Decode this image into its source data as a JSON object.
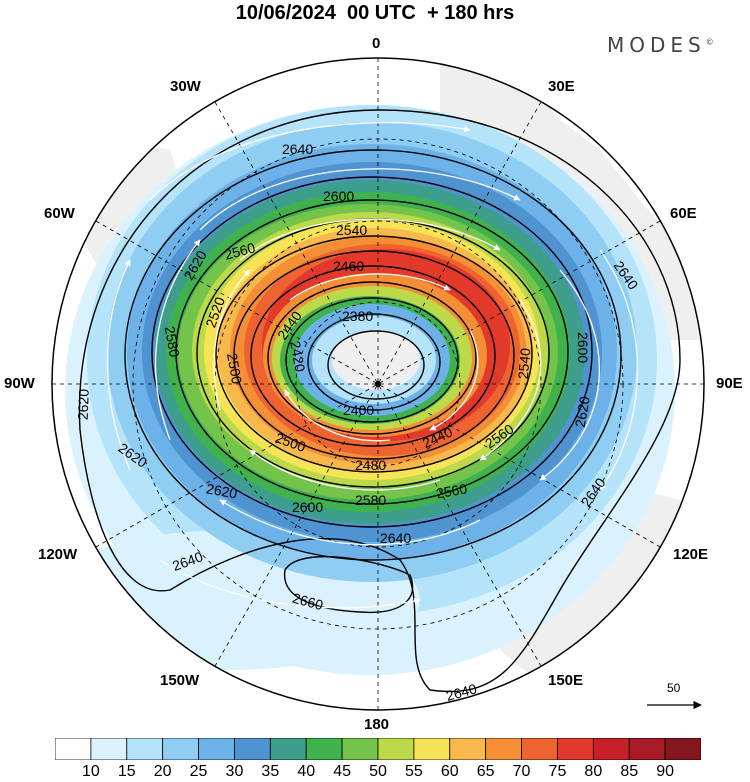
{
  "title": "10/06/2024  00 UTC  + 180 hrs",
  "logo": "MODES",
  "logo_mark": "©",
  "longitude_labels": {
    "lon0": "0",
    "lon30e": "30E",
    "lon60e": "60E",
    "lon90e": "90E",
    "lon120e": "120E",
    "lon150e": "150E",
    "lon180": "180",
    "lon150w": "150W",
    "lon120w": "120W",
    "lon90w": "90W",
    "lon60w": "60W",
    "lon30w": "30W"
  },
  "reference_vector": {
    "label": "50"
  },
  "contour_labels": [
    "2640",
    "2600",
    "2620",
    "2560",
    "2540",
    "2460",
    "2520",
    "2440",
    "2380",
    "2580",
    "2420",
    "2500",
    "2400",
    "2600",
    "2540",
    "2620",
    "2640",
    "2620",
    "2500",
    "2480",
    "2440",
    "2560",
    "2580",
    "2600",
    "2560",
    "2620",
    "2640",
    "2640",
    "2660",
    "2640"
  ],
  "colorbar": {
    "labels": [
      "10",
      "15",
      "20",
      "25",
      "30",
      "35",
      "40",
      "45",
      "50",
      "55",
      "60",
      "65",
      "70",
      "75",
      "80",
      "85",
      "90"
    ],
    "colors": [
      "#ffffff",
      "#d9f2fd",
      "#b4e3fa",
      "#8fcdf2",
      "#6cb2e8",
      "#4f93d1",
      "#3e9e8c",
      "#3fb24e",
      "#74c34a",
      "#bcd94a",
      "#f6e356",
      "#f8b84b",
      "#f58f36",
      "#ee6431",
      "#e2392b",
      "#c8202a",
      "#a61b25",
      "#85161e"
    ]
  },
  "map_colors": {
    "land": "#efefef",
    "coast": "#555555",
    "contour": "#000000",
    "vector": "#ffffff"
  }
}
